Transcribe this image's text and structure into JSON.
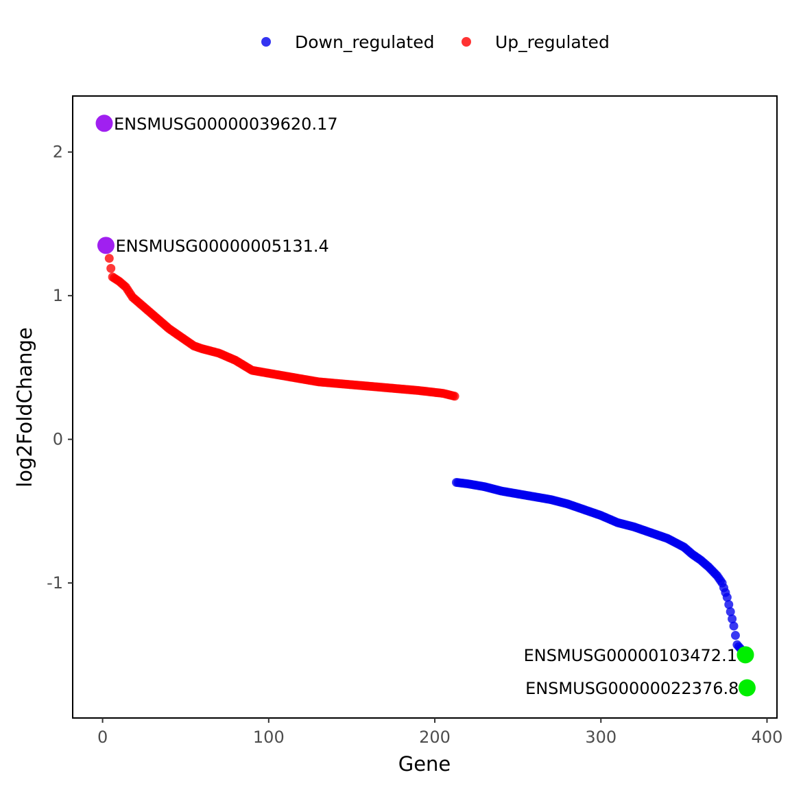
{
  "chart_data": {
    "type": "scatter",
    "title": "",
    "xlabel": "Gene",
    "ylabel": "log2FoldChange",
    "xlim": [
      -18,
      406
    ],
    "ylim": [
      -1.94,
      2.39
    ],
    "xticks": [
      0,
      100,
      200,
      300,
      400
    ],
    "xtick_labels": [
      "0",
      "100",
      "200",
      "300",
      "400"
    ],
    "yticks": [
      -1,
      0,
      1,
      2
    ],
    "ytick_labels": [
      "-1",
      "0",
      "1",
      "2"
    ],
    "grid": false,
    "legend": {
      "position": "top",
      "entries": [
        {
          "label": "Down_regulated",
          "color": "#0000ee"
        },
        {
          "label": "Up_regulated",
          "color": "#ff0000"
        }
      ]
    },
    "series": [
      {
        "name": "Up_regulated",
        "color": "#ff0000",
        "count": 212,
        "x_range": [
          1,
          212
        ],
        "anchors": [
          [
            1,
            2.2
          ],
          [
            2,
            1.35
          ],
          [
            3,
            1.33
          ],
          [
            5,
            1.19
          ],
          [
            6,
            1.13
          ],
          [
            10,
            1.1
          ],
          [
            14,
            1.06
          ],
          [
            18,
            0.99
          ],
          [
            22,
            0.95
          ],
          [
            25,
            0.92
          ],
          [
            30,
            0.87
          ],
          [
            35,
            0.82
          ],
          [
            40,
            0.77
          ],
          [
            45,
            0.73
          ],
          [
            50,
            0.69
          ],
          [
            55,
            0.65
          ],
          [
            60,
            0.63
          ],
          [
            70,
            0.6
          ],
          [
            80,
            0.55
          ],
          [
            90,
            0.48
          ],
          [
            100,
            0.46
          ],
          [
            110,
            0.44
          ],
          [
            120,
            0.42
          ],
          [
            130,
            0.4
          ],
          [
            150,
            0.38
          ],
          [
            170,
            0.36
          ],
          [
            190,
            0.34
          ],
          [
            205,
            0.32
          ],
          [
            212,
            0.3
          ]
        ]
      },
      {
        "name": "Down_regulated",
        "color": "#0000ee",
        "count": 176,
        "x_range": [
          213,
          388
        ],
        "anchors": [
          [
            213,
            -0.3
          ],
          [
            220,
            -0.31
          ],
          [
            230,
            -0.33
          ],
          [
            240,
            -0.36
          ],
          [
            250,
            -0.38
          ],
          [
            260,
            -0.4
          ],
          [
            270,
            -0.42
          ],
          [
            280,
            -0.45
          ],
          [
            290,
            -0.49
          ],
          [
            300,
            -0.53
          ],
          [
            310,
            -0.58
          ],
          [
            320,
            -0.61
          ],
          [
            330,
            -0.65
          ],
          [
            340,
            -0.69
          ],
          [
            350,
            -0.75
          ],
          [
            355,
            -0.8
          ],
          [
            360,
            -0.84
          ],
          [
            365,
            -0.89
          ],
          [
            370,
            -0.95
          ],
          [
            373,
            -1.0
          ],
          [
            376,
            -1.1
          ],
          [
            378,
            -1.2
          ],
          [
            380,
            -1.3
          ],
          [
            382,
            -1.43
          ],
          [
            385,
            -1.47
          ],
          [
            387,
            -1.5
          ],
          [
            388,
            -1.73
          ]
        ]
      }
    ],
    "highlights": [
      {
        "label": "ENSMUSG00000039620.17",
        "x": 1,
        "y": 2.2,
        "color": "#a020f0",
        "label_side": "right"
      },
      {
        "label": "ENSMUSG00000005131.4",
        "x": 2,
        "y": 1.35,
        "color": "#a020f0",
        "label_side": "right"
      },
      {
        "label": "ENSMUSG00000103472.1",
        "x": 387,
        "y": -1.5,
        "color": "#00ee00",
        "label_side": "left"
      },
      {
        "label": "ENSMUSG00000022376.8",
        "x": 388,
        "y": -1.73,
        "color": "#00ee00",
        "label_side": "left"
      }
    ]
  }
}
